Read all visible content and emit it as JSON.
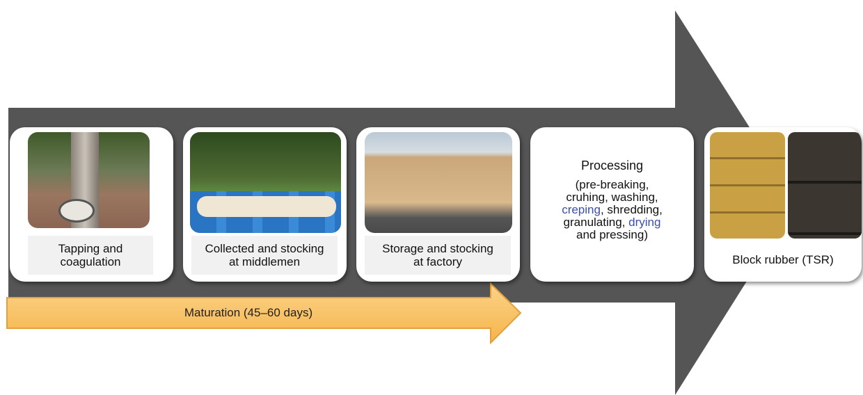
{
  "steps": [
    {
      "label_lines": [
        "Tapping and",
        "coagulation"
      ]
    },
    {
      "label_lines": [
        "Collected and stocking",
        "at middlemen"
      ]
    },
    {
      "label_lines": [
        "Storage and stocking",
        "at factory"
      ]
    },
    {
      "title": "Processing",
      "description": [
        [
          {
            "text": "(pre-breaking,"
          }
        ],
        [
          {
            "text": "cruhing, washing,"
          }
        ],
        [
          {
            "text": "creping",
            "color": "#3b4fa8"
          },
          {
            "text": ", shredding,"
          }
        ],
        [
          {
            "text": "granulating, "
          },
          {
            "text": "drying",
            "color": "#3b4fa8"
          }
        ],
        [
          {
            "text": "and pressing)"
          }
        ]
      ]
    },
    {
      "label_lines": [
        "Block rubber (TSR)"
      ]
    }
  ],
  "maturation": {
    "label": "Maturation (45–60 days)"
  }
}
